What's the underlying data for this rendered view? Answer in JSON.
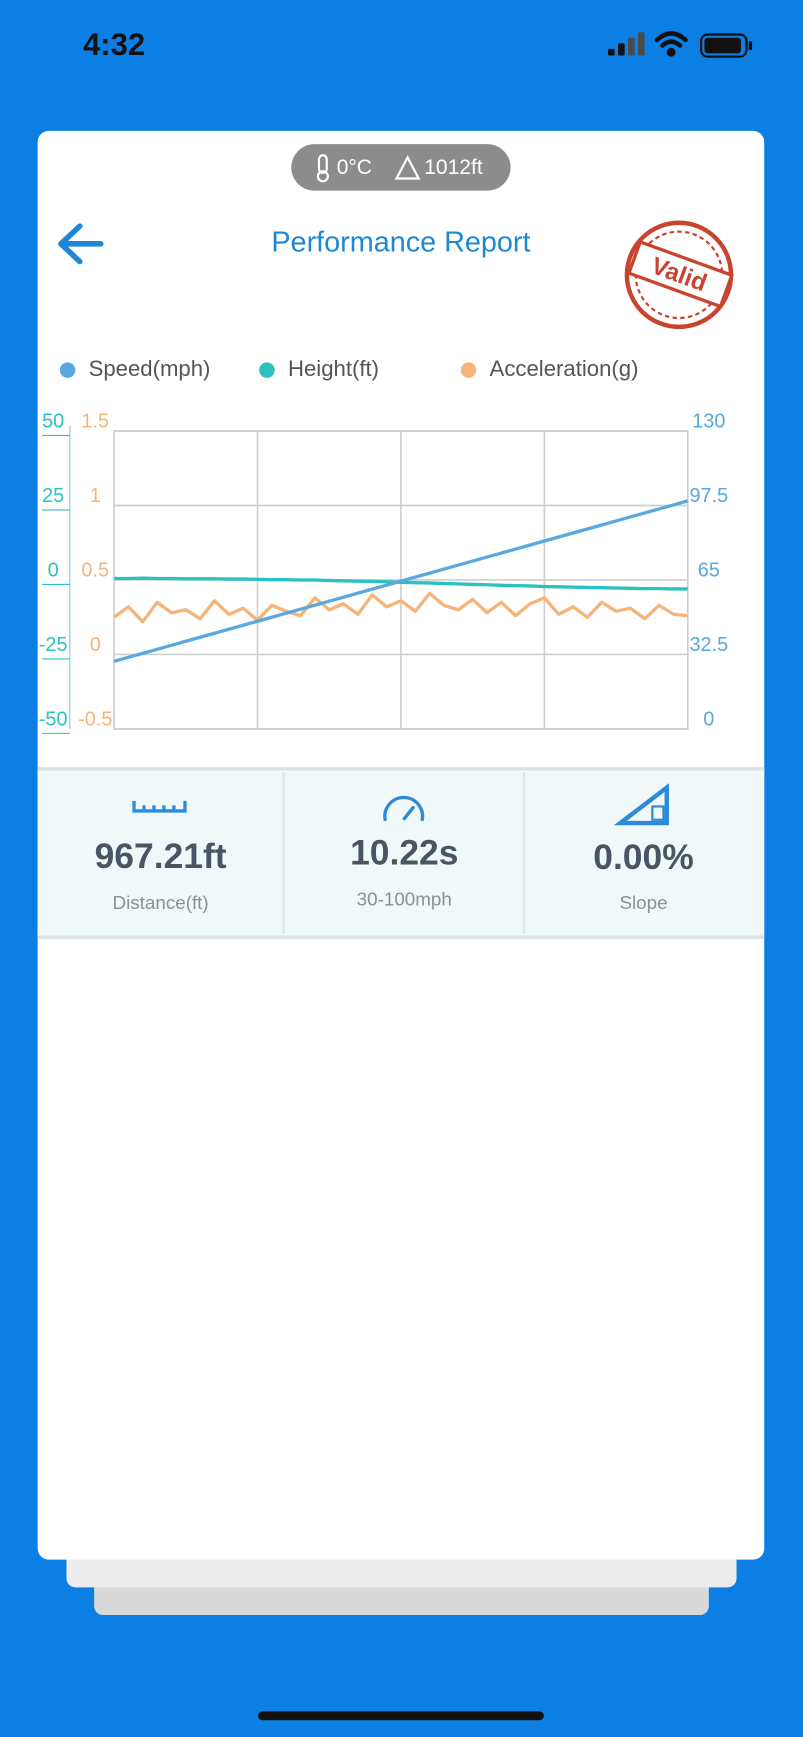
{
  "status_bar": {
    "time": "4:32"
  },
  "conditions": {
    "temperature": "0°C",
    "altitude": "1012ft"
  },
  "header": {
    "title": "Performance Report",
    "stamp": "Valid"
  },
  "chart_data": {
    "type": "line",
    "series": [
      {
        "name": "Speed(mph)",
        "color": "#5aa8e0",
        "axis": "y2",
        "values": [
          29.5,
          31.25,
          33,
          34.75,
          36.5,
          38.25,
          40,
          41.75,
          43.5,
          45.25,
          47,
          48.75,
          50.5,
          52.25,
          54,
          55.75,
          57.5,
          59.25,
          61,
          62.75,
          64.5,
          66.25,
          68,
          69.75,
          71.5,
          73.25,
          75,
          76.75,
          78.5,
          80.25,
          82,
          83.75,
          85.5,
          87.25,
          89,
          90.75,
          92.5,
          94.25,
          96,
          97.75,
          99.5
        ]
      },
      {
        "name": "Height(ft)",
        "color": "#2cc1c1",
        "values": [
          0.5,
          0.5,
          0.6,
          0.5,
          0.5,
          0.4,
          0.4,
          0.4,
          0.3,
          0.3,
          0.2,
          0.1,
          0.1,
          0,
          0,
          -0.2,
          -0.3,
          -0.4,
          -0.5,
          -0.6,
          -0.8,
          -0.9,
          -1,
          -1.2,
          -1.3,
          -1.5,
          -1.6,
          -1.8,
          -1.9,
          -2,
          -2.2,
          -2.3,
          -2.4,
          -2.5,
          -2.6,
          -2.7,
          -2.8,
          -2.9,
          -2.9,
          -3,
          -3
        ]
      },
      {
        "name": "Acceleration(g)",
        "color": "#f5b47a",
        "axis": "y3",
        "values": [
          0.25,
          0.32,
          0.22,
          0.35,
          0.28,
          0.3,
          0.24,
          0.36,
          0.27,
          0.31,
          0.23,
          0.33,
          0.29,
          0.26,
          0.38,
          0.3,
          0.34,
          0.27,
          0.4,
          0.32,
          0.36,
          0.29,
          0.41,
          0.33,
          0.3,
          0.37,
          0.28,
          0.35,
          0.26,
          0.34,
          0.38,
          0.27,
          0.32,
          0.25,
          0.35,
          0.29,
          0.31,
          0.24,
          0.33,
          0.27,
          0.26
        ]
      }
    ],
    "ylim": [
      -50,
      50
    ],
    "yticks": [
      -50,
      -25,
      0,
      25,
      50
    ],
    "y2lim": [
      0,
      130
    ],
    "y2ticks": [
      0,
      32.5,
      65,
      97.5,
      130
    ],
    "y3lim": [
      -0.5,
      1.5
    ],
    "y3ticks": [
      -0.5,
      0,
      0.5,
      1,
      1.5
    ],
    "grid": true
  },
  "stats": [
    {
      "value": "967.21ft",
      "label": "Distance(ft)"
    },
    {
      "value": "10.22s",
      "label": "30-100mph"
    },
    {
      "value": "0.00%",
      "label": "Slope"
    }
  ]
}
